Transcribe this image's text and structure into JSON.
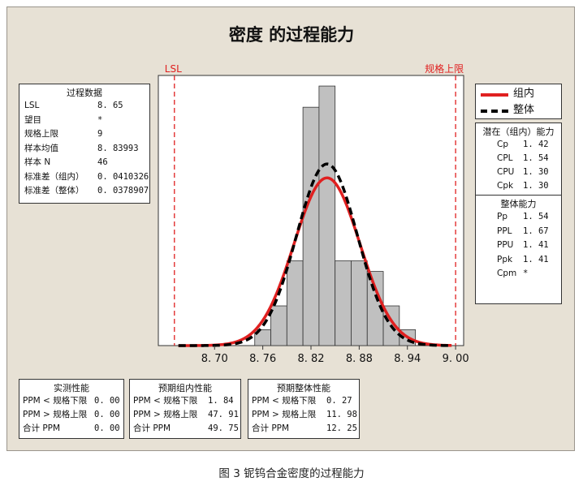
{
  "title": "密度 的过程能力",
  "caption": "图 3  铌钨合金密度的过程能力",
  "colors": {
    "within": "#e02020",
    "overall": "#000000",
    "bars": "#c0c0c0",
    "spec": "#e02020",
    "background": "#e7e1d5"
  },
  "process_data": {
    "header": "过程数据",
    "rows": [
      {
        "label": "LSL",
        "value": "8. 65"
      },
      {
        "label": "望目",
        "value": "*"
      },
      {
        "label": "规格上限",
        "value": "9"
      },
      {
        "label": "样本均值",
        "value": "8. 83993"
      },
      {
        "label": "样本 N",
        "value": "46"
      },
      {
        "label": "标准差（组内）",
        "value": "0. 0410326"
      },
      {
        "label": "标准差（整体）",
        "value": "0. 0378907"
      }
    ]
  },
  "legend": {
    "within": "组内",
    "overall": "整体"
  },
  "potential": {
    "header": "潜在（组内）能力",
    "rows": [
      {
        "label": "Cp",
        "value": "1. 42"
      },
      {
        "label": "CPL",
        "value": "1. 54"
      },
      {
        "label": "CPU",
        "value": "1. 30"
      },
      {
        "label": "Cpk",
        "value": "1. 30"
      }
    ]
  },
  "overall_cap": {
    "header": "整体能力",
    "rows": [
      {
        "label": "Pp",
        "value": "1. 54"
      },
      {
        "label": "PPL",
        "value": "1. 67"
      },
      {
        "label": "PPU",
        "value": "1. 41"
      },
      {
        "label": "Ppk",
        "value": "1. 41"
      },
      {
        "label": "Cpm",
        "value": "*"
      }
    ]
  },
  "observed": {
    "header": "实测性能",
    "rows": [
      {
        "label": "PPM < 规格下限",
        "value": "0. 00"
      },
      {
        "label": "PPM > 规格上限",
        "value": "0. 00"
      },
      {
        "label": "合计 PPM",
        "value": "0. 00"
      }
    ]
  },
  "exp_within": {
    "header": "预期组内性能",
    "rows": [
      {
        "label": "PPM < 规格下限",
        "value": "1. 84"
      },
      {
        "label": "PPM > 规格上限",
        "value": "47. 91"
      },
      {
        "label": "合计 PPM",
        "value": "49. 75"
      }
    ]
  },
  "exp_overall": {
    "header": "预期整体性能",
    "rows": [
      {
        "label": "PPM < 规格下限",
        "value": "0. 27"
      },
      {
        "label": "PPM > 规格上限",
        "value": "11. 98"
      },
      {
        "label": "合计 PPM",
        "value": "12. 25"
      }
    ]
  },
  "chart_data": {
    "type": "bar",
    "title": "密度 的过程能力",
    "xlim": [
      8.63,
      9.01
    ],
    "ylim": [
      0,
      10.2
    ],
    "x_ticks": [
      {
        "value": 8.7,
        "label": "8. 70"
      },
      {
        "value": 8.76,
        "label": "8. 76"
      },
      {
        "value": 8.82,
        "label": "8. 82"
      },
      {
        "value": 8.88,
        "label": "8. 88"
      },
      {
        "value": 8.94,
        "label": "8. 94"
      },
      {
        "value": 9.0,
        "label": "9. 00"
      }
    ],
    "bin_width": 0.02,
    "bins": [
      {
        "x0": 8.75,
        "x1": 8.77,
        "count": 0.6
      },
      {
        "x0": 8.77,
        "x1": 8.79,
        "count": 1.5
      },
      {
        "x0": 8.79,
        "x1": 8.81,
        "count": 3.2
      },
      {
        "x0": 8.81,
        "x1": 8.83,
        "count": 9.0
      },
      {
        "x0": 8.83,
        "x1": 8.85,
        "count": 9.8
      },
      {
        "x0": 8.85,
        "x1": 8.87,
        "count": 3.2
      },
      {
        "x0": 8.87,
        "x1": 8.89,
        "count": 3.2
      },
      {
        "x0": 8.89,
        "x1": 8.91,
        "count": 2.8
      },
      {
        "x0": 8.91,
        "x1": 8.93,
        "count": 1.5
      },
      {
        "x0": 8.93,
        "x1": 8.95,
        "count": 0.6
      }
    ],
    "spec_limits": [
      {
        "name": "LSL",
        "value": 8.65
      },
      {
        "name": "规格上限",
        "value": 9.0
      }
    ],
    "curve_scale": 0.92,
    "curves": [
      {
        "name": "组内",
        "mean": 8.83993,
        "sd": 0.0410326,
        "style": "solid"
      },
      {
        "name": "整体",
        "mean": 8.83993,
        "sd": 0.0378907,
        "style": "dashed"
      }
    ],
    "grid": false
  }
}
